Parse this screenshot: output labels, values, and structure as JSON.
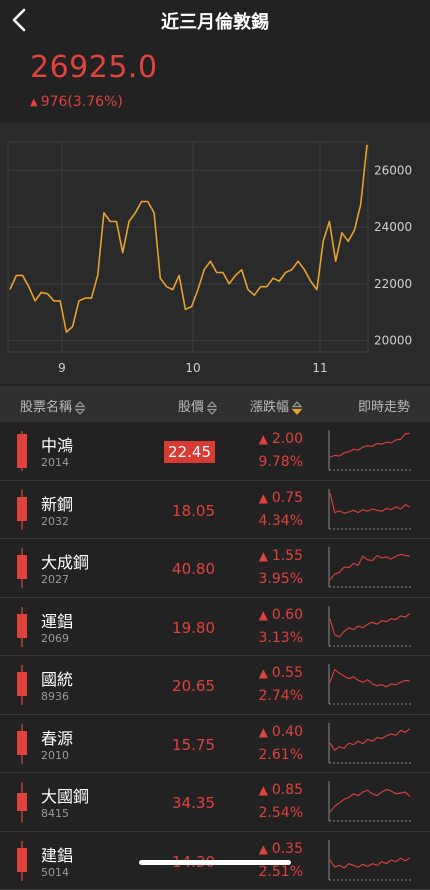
{
  "header": {
    "title": "近三月倫敦錫",
    "back_icon": "chevron-left-icon"
  },
  "quote": {
    "price": "26925.0",
    "change": "976(3.76%)",
    "up_color": "#e0423c"
  },
  "chart_data": {
    "type": "line",
    "title": "",
    "xlabel": "",
    "ylabel": "",
    "x_ticks": [
      "9",
      "10",
      "11"
    ],
    "y_ticks": [
      "26000",
      "24000",
      "22000",
      "20000"
    ],
    "ylim": [
      19600,
      27000
    ],
    "line_color": "#e8a12e",
    "grid": true,
    "y": [
      21800,
      22300,
      22300,
      21900,
      21400,
      21700,
      21650,
      21400,
      21400,
      20300,
      20500,
      21400,
      21500,
      21500,
      22300,
      24500,
      24200,
      24200,
      23100,
      24200,
      24500,
      24900,
      24900,
      24500,
      22200,
      21900,
      21800,
      22300,
      21100,
      21200,
      21800,
      22500,
      22800,
      22400,
      22400,
      22000,
      22300,
      22500,
      21800,
      21600,
      21900,
      21900,
      22200,
      22100,
      22400,
      22500,
      22800,
      22500,
      22100,
      21800,
      23500,
      24200,
      22800,
      23800,
      23500,
      23900,
      24800,
      26900
    ]
  },
  "columns": {
    "name": "股票名稱",
    "price": "股價",
    "change": "漲跌幅",
    "trend": "即時走勢"
  },
  "stocks": [
    {
      "name": "中鴻",
      "code": "2014",
      "price": "22.45",
      "change": "2.00",
      "pct": "9.78%",
      "highlight": true,
      "spark": [
        0.3,
        0.35,
        0.33,
        0.42,
        0.45,
        0.52,
        0.5,
        0.58,
        0.62,
        0.6,
        0.68,
        0.66,
        0.72,
        0.7,
        0.78,
        0.8,
        0.95,
        0.96
      ]
    },
    {
      "name": "新鋼",
      "code": "2032",
      "price": "18.05",
      "change": "0.75",
      "pct": "4.34%",
      "spark": [
        0.95,
        0.4,
        0.45,
        0.38,
        0.42,
        0.46,
        0.4,
        0.48,
        0.44,
        0.5,
        0.46,
        0.44,
        0.52,
        0.48,
        0.56,
        0.5,
        0.62,
        0.55
      ]
    },
    {
      "name": "大成鋼",
      "code": "2027",
      "price": "40.80",
      "change": "1.55",
      "pct": "3.95%",
      "spark": [
        0.15,
        0.3,
        0.35,
        0.5,
        0.48,
        0.6,
        0.55,
        0.8,
        0.7,
        0.68,
        0.82,
        0.75,
        0.78,
        0.72,
        0.8,
        0.85,
        0.82,
        0.8
      ]
    },
    {
      "name": "運錩",
      "code": "2069",
      "price": "19.80",
      "change": "0.60",
      "pct": "3.13%",
      "spark": [
        0.7,
        0.25,
        0.2,
        0.35,
        0.45,
        0.4,
        0.5,
        0.45,
        0.55,
        0.6,
        0.55,
        0.65,
        0.62,
        0.7,
        0.68,
        0.78,
        0.75,
        0.85
      ]
    },
    {
      "name": "國統",
      "code": "8936",
      "price": "20.65",
      "change": "0.55",
      "pct": "2.74%",
      "spark": [
        0.55,
        0.9,
        0.8,
        0.72,
        0.65,
        0.7,
        0.6,
        0.55,
        0.62,
        0.5,
        0.45,
        0.48,
        0.42,
        0.5,
        0.48,
        0.55,
        0.6,
        0.58
      ]
    },
    {
      "name": "春源",
      "code": "2010",
      "price": "15.75",
      "change": "0.40",
      "pct": "2.61%",
      "spark": [
        0.5,
        0.3,
        0.4,
        0.35,
        0.5,
        0.45,
        0.55,
        0.48,
        0.6,
        0.55,
        0.65,
        0.62,
        0.7,
        0.75,
        0.72,
        0.85,
        0.8,
        0.9
      ]
    },
    {
      "name": "大國鋼",
      "code": "8415",
      "price": "34.35",
      "change": "0.85",
      "pct": "2.54%",
      "spark": [
        0.2,
        0.35,
        0.45,
        0.55,
        0.6,
        0.7,
        0.65,
        0.75,
        0.8,
        0.7,
        0.65,
        0.75,
        0.82,
        0.78,
        0.7,
        0.72,
        0.75,
        0.62
      ]
    },
    {
      "name": "建錩",
      "code": "5014",
      "price": "14.30",
      "change": "0.35",
      "pct": "2.51%",
      "spark": [
        0.5,
        0.3,
        0.35,
        0.28,
        0.4,
        0.35,
        0.3,
        0.38,
        0.32,
        0.4,
        0.35,
        0.45,
        0.4,
        0.5,
        0.45,
        0.55,
        0.48,
        0.55
      ]
    }
  ]
}
